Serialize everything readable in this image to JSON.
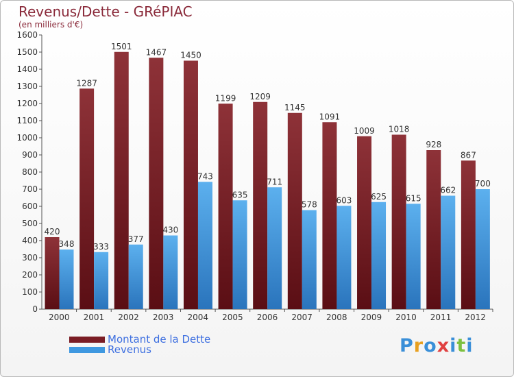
{
  "header": {
    "title": "Revenus/Dette - GRéPIAC",
    "subtitle": "(en milliers d'€)"
  },
  "legend": {
    "items": [
      {
        "label": "Montant de la Dette",
        "color": "#7a1c24"
      },
      {
        "label": "Revenus",
        "color": "#3f98e0"
      }
    ]
  },
  "logo": {
    "text": "Proxiti",
    "letters": [
      "P",
      "r",
      "o",
      "x",
      "i",
      "t",
      "i"
    ],
    "colors": [
      "#3a8fd8",
      "#e8a020",
      "#3a8fd8",
      "#e04040",
      "#3a8fd8",
      "#7cc040",
      "#3a8fd8"
    ]
  },
  "chart_data": {
    "type": "bar",
    "title": "Revenus/Dette - GRéPIAC",
    "ylabel": "(en milliers d'€)",
    "xlabel": "",
    "ylim": [
      0,
      1600
    ],
    "ytick_step": 100,
    "grid": false,
    "legend_position": "bottom-left",
    "categories": [
      "2000",
      "2001",
      "2002",
      "2003",
      "2004",
      "2005",
      "2006",
      "2007",
      "2008",
      "2009",
      "2010",
      "2011",
      "2012"
    ],
    "series": [
      {
        "name": "Montant de la Dette",
        "color": "#7a1c24",
        "values": [
          420,
          1287,
          1501,
          1467,
          1450,
          1199,
          1209,
          1145,
          1091,
          1009,
          1018,
          928,
          867
        ]
      },
      {
        "name": "Revenus",
        "color": "#3f98e0",
        "values": [
          348,
          333,
          377,
          430,
          743,
          635,
          711,
          578,
          603,
          625,
          615,
          662,
          700
        ]
      }
    ]
  }
}
